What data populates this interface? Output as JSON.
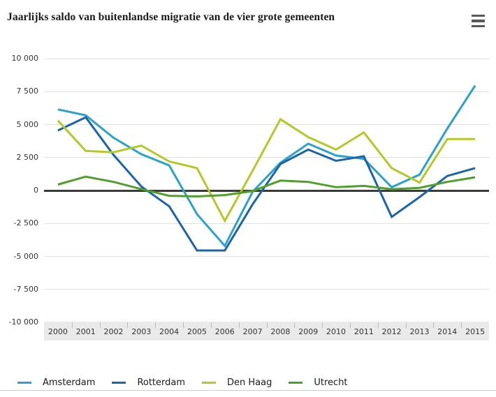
{
  "header": {
    "title": "Jaarlijks saldo van buitenlandse migratie van de vier grote gemeenten"
  },
  "icons": {
    "menu": "hamburger-icon"
  },
  "chart_data": {
    "type": "line",
    "title": "Jaarlijks saldo van buitenlandse migratie van de vier grote gemeenten",
    "x": [
      "2000",
      "2001",
      "2002",
      "2003",
      "2004",
      "2005",
      "2006",
      "2007",
      "2008",
      "2009",
      "2010",
      "2011",
      "2012",
      "2013",
      "2014",
      "2015"
    ],
    "series": [
      {
        "name": "Amsterdam",
        "color": "#29a3cb",
        "values": [
          6150,
          5700,
          4000,
          2750,
          1900,
          -1800,
          -4200,
          -100,
          2100,
          3550,
          2650,
          2400,
          250,
          1200,
          4700,
          7950
        ]
      },
      {
        "name": "Rotterdam",
        "color": "#1b63ab",
        "values": [
          4550,
          5550,
          2700,
          300,
          -1200,
          -4550,
          -4550,
          -1050,
          2000,
          3100,
          2250,
          2600,
          -2000,
          -500,
          1100,
          1700
        ]
      },
      {
        "name": "Den Haag",
        "color": "#b4c926",
        "values": [
          5300,
          3000,
          2900,
          3400,
          2200,
          1700,
          -2300,
          1500,
          5400,
          4050,
          3100,
          4400,
          1700,
          600,
          3900,
          3900
        ]
      },
      {
        "name": "Utrecht",
        "color": "#519f2b",
        "values": [
          450,
          1050,
          650,
          100,
          -400,
          -450,
          -350,
          -50,
          750,
          650,
          250,
          350,
          100,
          200,
          650,
          1000
        ]
      }
    ],
    "ylim": [
      -10000,
      10000
    ],
    "ytick_step": 2500,
    "ytick_labels": [
      "10 000",
      "7 500",
      "5 000",
      "2 500",
      "0",
      "-2 500",
      "-5 000",
      "-7 500",
      "-10 000"
    ],
    "grid": "horizontal-only",
    "zero_line": true,
    "legend_position": "bottom-left"
  },
  "colors": {
    "grid": "#e1e1e1",
    "zero_line": "#3a3a3a",
    "axis_band_bg": "#eaeaea",
    "divider": "#cccccc",
    "menu_icon": "#595959"
  }
}
